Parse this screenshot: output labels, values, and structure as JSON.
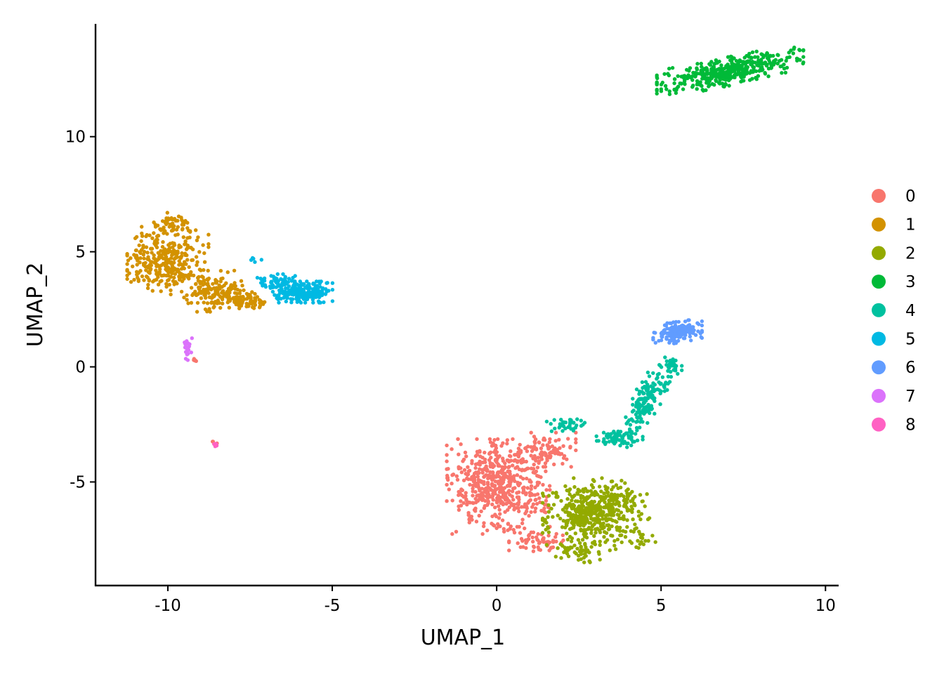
{
  "chart_data": {
    "type": "scatter",
    "title": "",
    "xlabel": "UMAP_1",
    "ylabel": "UMAP_2",
    "xlim": [
      -12.2,
      10.4
    ],
    "ylim": [
      -9.5,
      14.9
    ],
    "x_ticks": [
      -10,
      -5,
      0,
      5,
      10
    ],
    "x_tick_labels": [
      "-10",
      "-5",
      "0",
      "5",
      "10"
    ],
    "y_ticks": [
      -5,
      0,
      5,
      10
    ],
    "y_tick_labels": [
      "-5",
      "0",
      "5",
      "10"
    ],
    "grid": false,
    "legend_position": "right",
    "point_count_note": "",
    "series": [
      {
        "name": "0",
        "color": "#F8766D",
        "count": 740,
        "regions": [
          {
            "center": [
              0.05,
              -5.2
            ],
            "spread": [
              0.95,
              1.25
            ],
            "n": 560
          },
          {
            "center": [
              1.5,
              -3.6
            ],
            "spread": [
              0.55,
              0.45
            ],
            "n": 90
          },
          {
            "center": [
              1.2,
              -7.6
            ],
            "spread": [
              0.5,
              0.25
            ],
            "n": 60
          },
          {
            "center": [
              -9.2,
              0.3
            ],
            "spread": [
              0.05,
              0.05
            ],
            "n": 6
          },
          {
            "center": [
              -8.6,
              -3.3
            ],
            "spread": [
              0.06,
              0.05
            ],
            "n": 4
          }
        ]
      },
      {
        "name": "1",
        "color": "#D39200",
        "count": 600,
        "regions": [
          {
            "center": [
              -10.0,
              4.6
            ],
            "spread": [
              0.75,
              0.9
            ],
            "n": 320
          },
          {
            "center": [
              -9.9,
              6.2
            ],
            "spread": [
              0.35,
              0.35
            ],
            "n": 60
          },
          {
            "center": [
              -8.6,
              3.3
            ],
            "spread": [
              0.55,
              0.55
            ],
            "n": 150
          },
          {
            "center": [
              -7.6,
              2.9
            ],
            "spread": [
              0.35,
              0.22
            ],
            "n": 70
          }
        ]
      },
      {
        "name": "2",
        "color": "#93AA00",
        "count": 560,
        "regions": [
          {
            "center": [
              2.8,
              -6.4
            ],
            "spread": [
              0.85,
              0.95
            ],
            "n": 400
          },
          {
            "center": [
              3.8,
              -5.8
            ],
            "spread": [
              0.55,
              0.5
            ],
            "n": 90
          },
          {
            "center": [
              2.4,
              -8.0
            ],
            "spread": [
              0.45,
              0.3
            ],
            "n": 50
          },
          {
            "center": [
              4.3,
              -7.4
            ],
            "spread": [
              0.35,
              0.3
            ],
            "n": 20
          }
        ]
      },
      {
        "name": "3",
        "color": "#00BA38",
        "count": 420,
        "regions": [
          {
            "center": [
              7.1,
              12.85
            ],
            "spread": [
              1.35,
              0.38
            ],
            "n": 420
          }
        ]
      },
      {
        "name": "4",
        "color": "#00C19F",
        "count": 300,
        "regions": [
          {
            "center": [
              4.6,
              -1.4
            ],
            "spread": [
              0.3,
              0.9
            ],
            "n": 160
          },
          {
            "center": [
              3.7,
              -3.1
            ],
            "spread": [
              0.45,
              0.25
            ],
            "n": 70
          },
          {
            "center": [
              2.1,
              -2.5
            ],
            "spread": [
              0.35,
              0.18
            ],
            "n": 40
          },
          {
            "center": [
              5.3,
              0.1
            ],
            "spread": [
              0.2,
              0.25
            ],
            "n": 30
          }
        ]
      },
      {
        "name": "5",
        "color": "#00B9E3",
        "count": 300,
        "regions": [
          {
            "center": [
              -5.9,
              3.25
            ],
            "spread": [
              0.55,
              0.28
            ],
            "n": 240
          },
          {
            "center": [
              -6.7,
              3.7
            ],
            "spread": [
              0.35,
              0.2
            ],
            "n": 55
          },
          {
            "center": [
              -7.4,
              4.7
            ],
            "spread": [
              0.15,
              0.15
            ],
            "n": 5
          }
        ]
      },
      {
        "name": "6",
        "color": "#619CFF",
        "count": 170,
        "regions": [
          {
            "center": [
              5.5,
              1.5
            ],
            "spread": [
              0.45,
              0.28
            ],
            "n": 170
          }
        ]
      },
      {
        "name": "7",
        "color": "#DB72FB",
        "count": 22,
        "regions": [
          {
            "center": [
              -9.4,
              0.75
            ],
            "spread": [
              0.08,
              0.3
            ],
            "n": 22
          }
        ]
      },
      {
        "name": "8",
        "color": "#FF61C3",
        "count": 8,
        "regions": [
          {
            "center": [
              -8.55,
              -3.4
            ],
            "spread": [
              0.05,
              0.05
            ],
            "n": 8
          }
        ]
      }
    ]
  }
}
